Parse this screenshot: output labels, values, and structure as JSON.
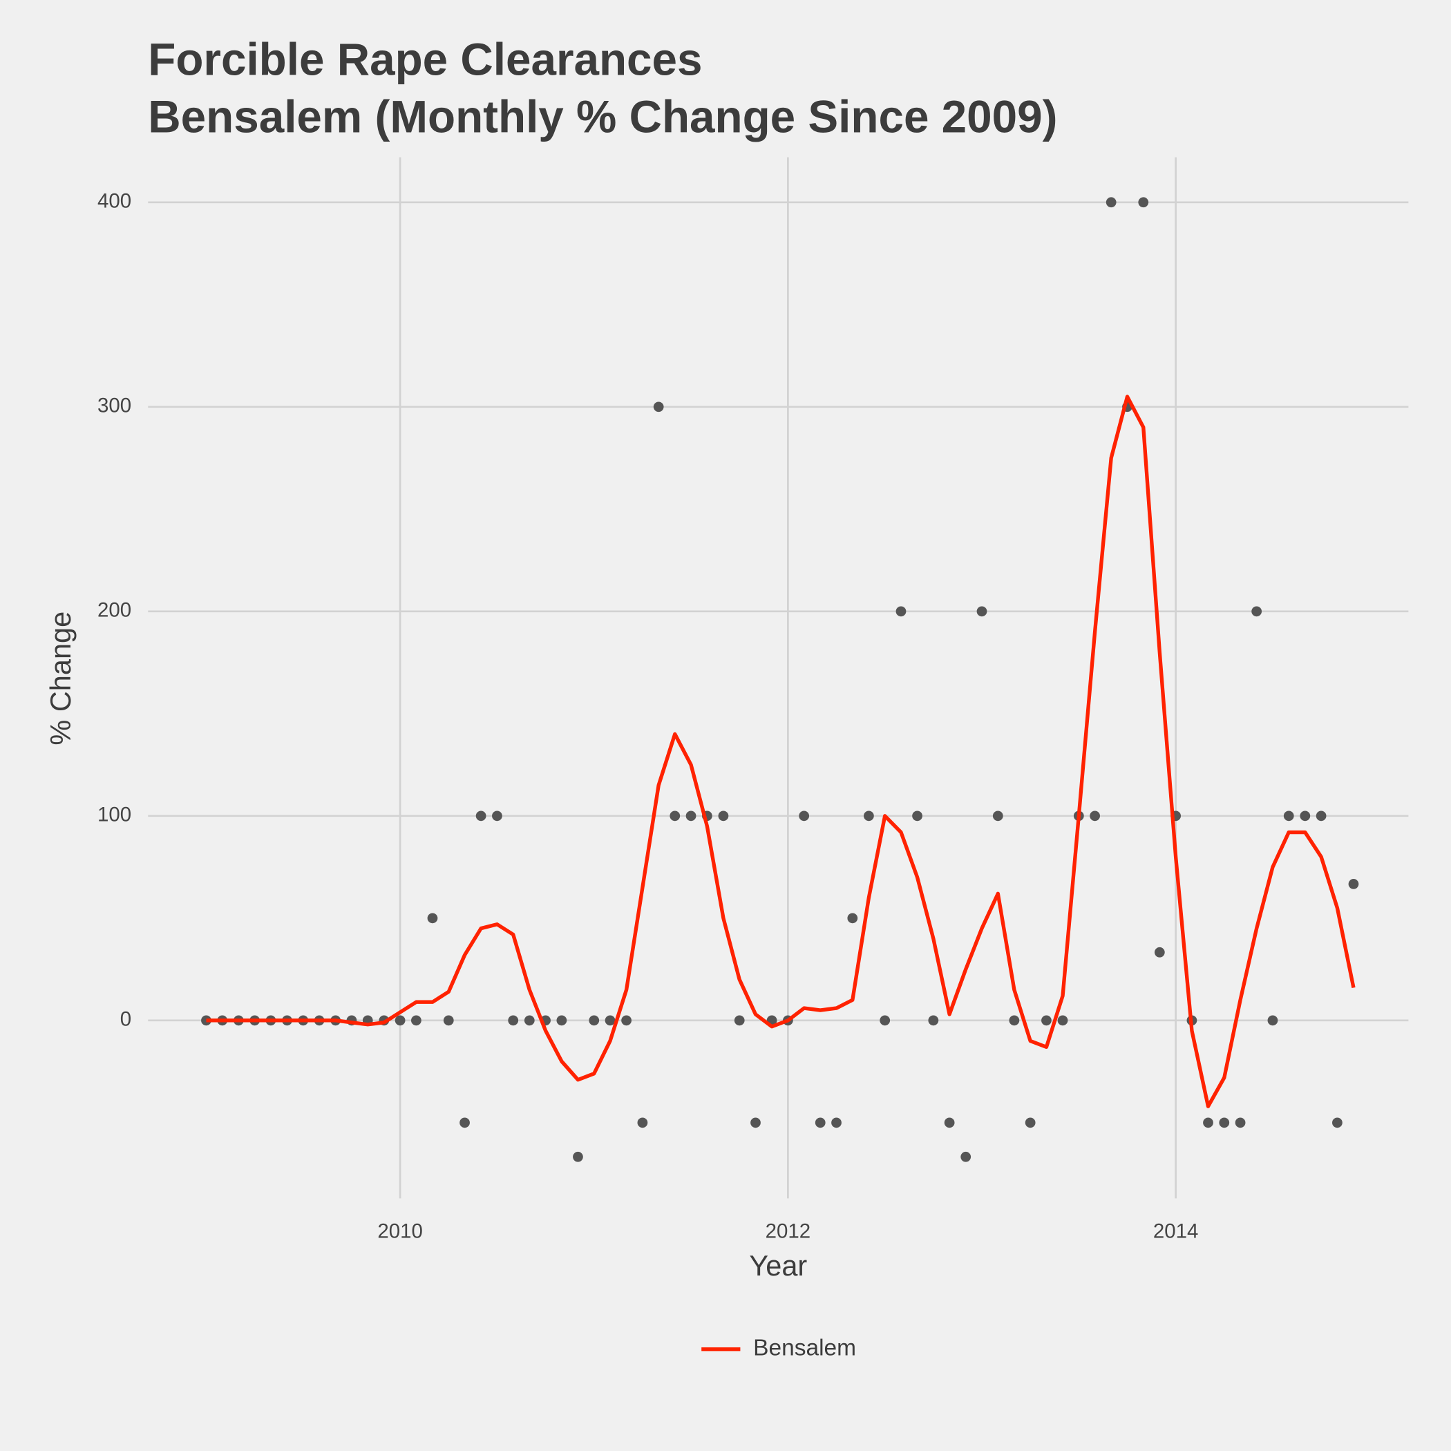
{
  "chart_data": {
    "type": "line",
    "title": [
      "Forcible Rape Clearances",
      "Bensalem (Monthly % Change Since 2009)"
    ],
    "x_label": "Year",
    "y_label": "% Change",
    "x": [
      2009,
      2009.083,
      2009.167,
      2009.25,
      2009.333,
      2009.417,
      2009.5,
      2009.583,
      2009.667,
      2009.75,
      2009.833,
      2009.917,
      2010,
      2010.083,
      2010.167,
      2010.25,
      2010.333,
      2010.417,
      2010.5,
      2010.583,
      2010.667,
      2010.75,
      2010.833,
      2010.917,
      2011,
      2011.083,
      2011.167,
      2011.25,
      2011.333,
      2011.417,
      2011.5,
      2011.583,
      2011.667,
      2011.75,
      2011.833,
      2011.917,
      2012,
      2012.083,
      2012.167,
      2012.25,
      2012.333,
      2012.417,
      2012.5,
      2012.583,
      2012.667,
      2012.75,
      2012.833,
      2012.917,
      2013,
      2013.083,
      2013.167,
      2013.25,
      2013.333,
      2013.417,
      2013.5,
      2013.583,
      2013.667,
      2013.75,
      2013.833,
      2013.917,
      2014,
      2014.083,
      2014.167,
      2014.25,
      2014.333,
      2014.417,
      2014.5,
      2014.583,
      2014.667,
      2014.75,
      2014.833,
      2014.917
    ],
    "series": [
      {
        "name": "Bensalem",
        "color": "#ff2200",
        "values": [
          0,
          0,
          0,
          0,
          0,
          0,
          0,
          0,
          0,
          -1,
          -2,
          -1,
          4,
          9,
          9,
          14,
          32,
          45,
          47,
          42,
          15,
          -5,
          -20,
          -29,
          -26,
          -10,
          15,
          65,
          115,
          140,
          125,
          95,
          50,
          20,
          3,
          -3,
          0,
          6,
          5,
          6,
          10,
          60,
          100,
          92,
          70,
          40,
          3,
          25,
          45,
          62,
          15,
          -10,
          -13,
          12,
          100,
          190,
          275,
          305,
          290,
          180,
          80,
          -5,
          -42,
          -28,
          10,
          45,
          75,
          92,
          92,
          80,
          55,
          16
        ]
      }
    ],
    "points": {
      "color": "#555555",
      "values": [
        0,
        0,
        0,
        0,
        0,
        0,
        0,
        0,
        0,
        0,
        0,
        0,
        0,
        0,
        50,
        0,
        -50,
        100,
        100,
        0,
        0,
        0,
        0,
        -66.7,
        0,
        0,
        0,
        -50,
        300,
        100,
        100,
        100,
        100,
        0,
        -50,
        0,
        0,
        100,
        -50,
        -50,
        50,
        100,
        0,
        200,
        100,
        0,
        -50,
        -66.7,
        200,
        100,
        0,
        -50,
        0,
        0,
        100,
        100,
        400,
        300,
        400,
        33.3,
        100,
        0,
        -50,
        -50,
        -50,
        200,
        0,
        100,
        100,
        100,
        -50,
        66.7
      ]
    },
    "xlim": [
      2008.7,
      2015.2
    ],
    "ylim": [
      -87,
      422
    ],
    "xticks": [
      2010,
      2012,
      2014
    ],
    "yticks": [
      0,
      100,
      200,
      300,
      400
    ],
    "grid": true,
    "legend": "bottom"
  }
}
